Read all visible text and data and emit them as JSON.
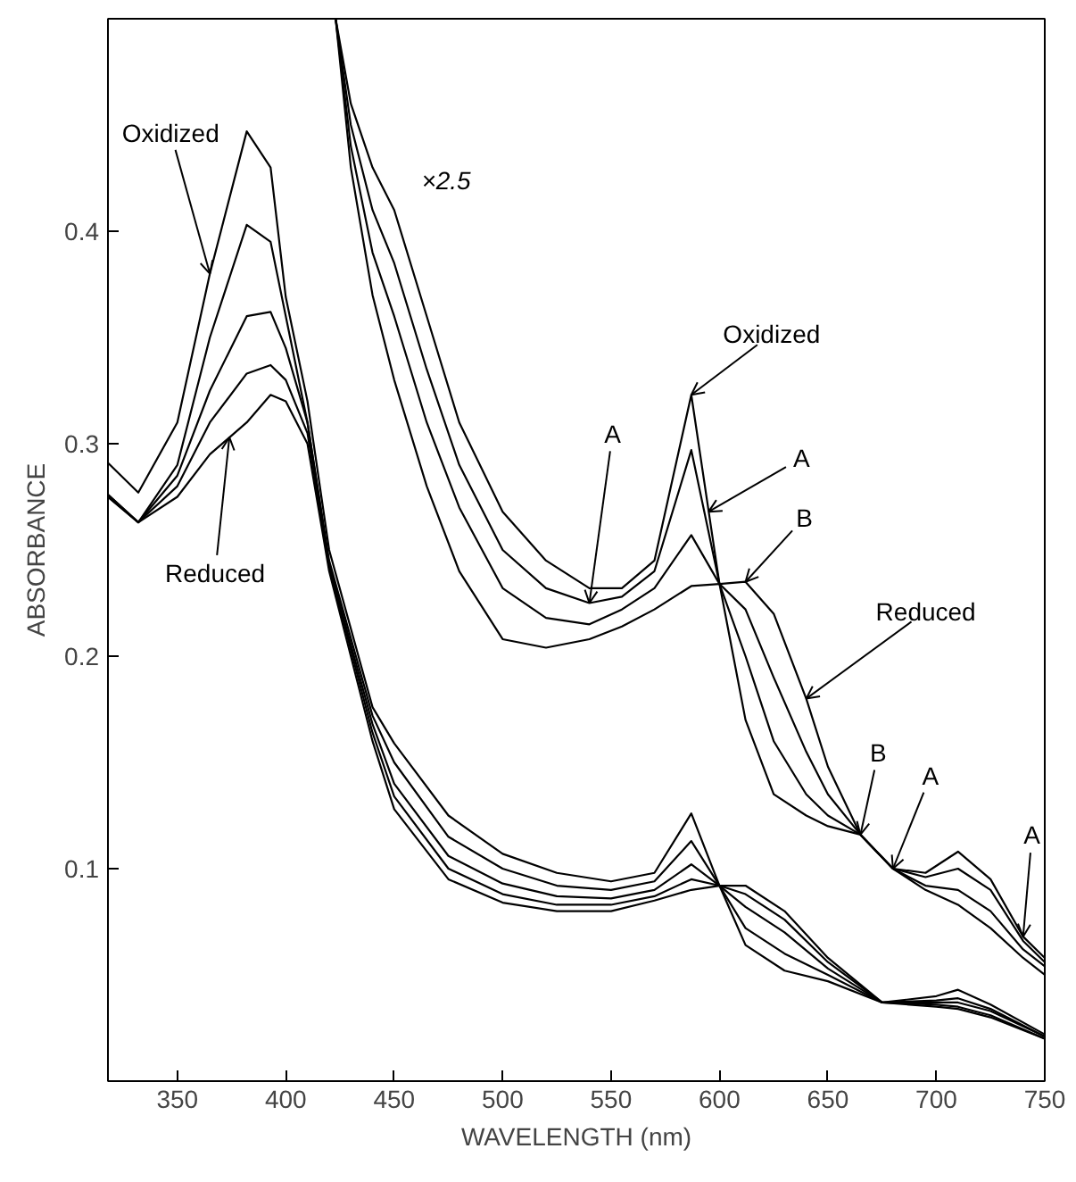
{
  "chart_data": {
    "type": "line",
    "xlabel": "WAVELENGTH (nm)",
    "ylabel": "ABSORBANCE",
    "xlim": [
      318,
      750
    ],
    "ylim": [
      0,
      0.5
    ],
    "xticks": [
      350,
      400,
      450,
      500,
      550,
      600,
      650,
      700,
      750
    ],
    "yticks": [
      0.1,
      0.2,
      0.3,
      0.4
    ],
    "grid": false,
    "line_style": "solid",
    "series": [
      {
        "color": "#000000",
        "x": [
          318,
          332,
          350,
          365,
          382,
          393,
          400,
          410,
          420,
          440,
          450,
          475,
          500,
          525,
          550,
          570,
          587,
          600,
          612,
          630,
          650,
          675,
          700,
          710,
          725,
          750
        ],
        "values": [
          0.291,
          0.277,
          0.31,
          0.38,
          0.447,
          0.43,
          0.369,
          0.32,
          0.25,
          0.176,
          0.159,
          0.125,
          0.107,
          0.098,
          0.094,
          0.098,
          0.126,
          0.092,
          0.064,
          0.052,
          0.047,
          0.037,
          0.04,
          0.043,
          0.036,
          0.022
        ]
      },
      {
        "color": "#000000",
        "x": [
          318,
          332,
          350,
          365,
          382,
          393,
          400,
          410,
          420,
          440,
          450,
          475,
          500,
          525,
          550,
          570,
          587,
          600,
          612,
          630,
          650,
          675,
          700,
          710,
          725,
          750
        ],
        "values": [
          0.276,
          0.263,
          0.29,
          0.35,
          0.403,
          0.395,
          0.36,
          0.31,
          0.245,
          0.172,
          0.15,
          0.115,
          0.1,
          0.092,
          0.09,
          0.094,
          0.113,
          0.092,
          0.072,
          0.06,
          0.05,
          0.037,
          0.038,
          0.039,
          0.034,
          0.021
        ]
      },
      {
        "color": "#000000",
        "x": [
          318,
          332,
          350,
          365,
          382,
          393,
          400,
          410,
          420,
          440,
          450,
          475,
          500,
          525,
          550,
          570,
          587,
          600,
          612,
          630,
          650,
          675,
          700,
          710,
          725,
          750
        ],
        "values": [
          0.276,
          0.263,
          0.285,
          0.325,
          0.36,
          0.362,
          0.345,
          0.31,
          0.243,
          0.168,
          0.14,
          0.106,
          0.093,
          0.087,
          0.086,
          0.09,
          0.102,
          0.092,
          0.082,
          0.07,
          0.053,
          0.037,
          0.037,
          0.037,
          0.033,
          0.021
        ]
      },
      {
        "color": "#000000",
        "x": [
          318,
          332,
          350,
          365,
          382,
          393,
          400,
          410,
          420,
          440,
          450,
          475,
          500,
          525,
          550,
          570,
          587,
          600,
          612,
          630,
          650,
          675,
          700,
          710,
          725,
          750
        ],
        "values": [
          0.275,
          0.263,
          0.28,
          0.31,
          0.333,
          0.337,
          0.33,
          0.305,
          0.242,
          0.164,
          0.134,
          0.1,
          0.088,
          0.083,
          0.083,
          0.087,
          0.095,
          0.092,
          0.088,
          0.076,
          0.056,
          0.037,
          0.036,
          0.035,
          0.031,
          0.02
        ]
      },
      {
        "color": "#000000",
        "x": [
          318,
          332,
          350,
          365,
          382,
          393,
          400,
          410,
          420,
          440,
          450,
          475,
          500,
          525,
          550,
          570,
          587,
          600,
          612,
          630,
          650,
          675,
          700,
          710,
          725,
          750
        ],
        "values": [
          0.275,
          0.263,
          0.275,
          0.295,
          0.31,
          0.323,
          0.32,
          0.3,
          0.24,
          0.16,
          0.128,
          0.095,
          0.084,
          0.08,
          0.08,
          0.085,
          0.09,
          0.092,
          0.092,
          0.08,
          0.058,
          0.037,
          0.035,
          0.034,
          0.03,
          0.02
        ]
      },
      {
        "color": "#000000",
        "x": [
          423,
          430,
          440,
          450,
          465,
          480,
          500,
          520,
          540,
          555,
          570,
          587,
          600,
          612,
          625,
          640,
          650,
          665,
          680,
          695,
          710,
          725,
          740,
          750
        ],
        "values": [
          0.5,
          0.46,
          0.43,
          0.41,
          0.36,
          0.31,
          0.268,
          0.245,
          0.232,
          0.232,
          0.245,
          0.323,
          0.234,
          0.17,
          0.135,
          0.125,
          0.12,
          0.116,
          0.1,
          0.098,
          0.108,
          0.095,
          0.068,
          0.058
        ]
      },
      {
        "color": "#000000",
        "x": [
          423,
          430,
          440,
          450,
          465,
          480,
          500,
          520,
          540,
          555,
          570,
          587,
          600,
          612,
          625,
          640,
          650,
          665,
          680,
          695,
          710,
          725,
          740,
          750
        ],
        "values": [
          0.5,
          0.45,
          0.41,
          0.385,
          0.335,
          0.29,
          0.25,
          0.232,
          0.225,
          0.228,
          0.24,
          0.297,
          0.234,
          0.2,
          0.16,
          0.135,
          0.125,
          0.116,
          0.1,
          0.096,
          0.1,
          0.09,
          0.066,
          0.056
        ]
      },
      {
        "color": "#000000",
        "x": [
          423,
          430,
          440,
          450,
          465,
          480,
          500,
          520,
          540,
          555,
          570,
          587,
          600,
          612,
          625,
          640,
          650,
          665,
          680,
          695,
          710,
          725,
          740,
          750
        ],
        "values": [
          0.5,
          0.44,
          0.39,
          0.36,
          0.31,
          0.27,
          0.232,
          0.218,
          0.215,
          0.222,
          0.232,
          0.257,
          0.234,
          0.222,
          0.19,
          0.155,
          0.135,
          0.116,
          0.1,
          0.092,
          0.09,
          0.08,
          0.062,
          0.054
        ]
      },
      {
        "color": "#000000",
        "x": [
          423,
          430,
          440,
          450,
          465,
          480,
          500,
          520,
          540,
          555,
          570,
          587,
          600,
          612,
          625,
          640,
          650,
          665,
          680,
          695,
          710,
          725,
          740,
          750
        ],
        "values": [
          0.5,
          0.43,
          0.37,
          0.33,
          0.28,
          0.24,
          0.208,
          0.204,
          0.208,
          0.214,
          0.222,
          0.233,
          0.234,
          0.235,
          0.22,
          0.18,
          0.148,
          0.116,
          0.1,
          0.09,
          0.083,
          0.072,
          0.058,
          0.05
        ]
      }
    ],
    "annotations": [
      {
        "text": "Oxidized",
        "x": 365,
        "y": 0.38
      },
      {
        "text": "Reduced",
        "x": 374,
        "y": 0.303
      },
      "×2.5",
      {
        "text": "Oxidized",
        "x": 587,
        "y": 0.323
      },
      {
        "text": "A",
        "x": 540,
        "y": 0.225
      },
      {
        "text": "A",
        "x": 595,
        "y": 0.268
      },
      {
        "text": "B",
        "x": 612,
        "y": 0.235
      },
      {
        "text": "Reduced",
        "x": 640,
        "y": 0.18
      },
      {
        "text": "B",
        "x": 665,
        "y": 0.116
      },
      {
        "text": "A",
        "x": 680,
        "y": 0.1
      },
      {
        "text": "A",
        "x": 740,
        "y": 0.068
      }
    ]
  }
}
